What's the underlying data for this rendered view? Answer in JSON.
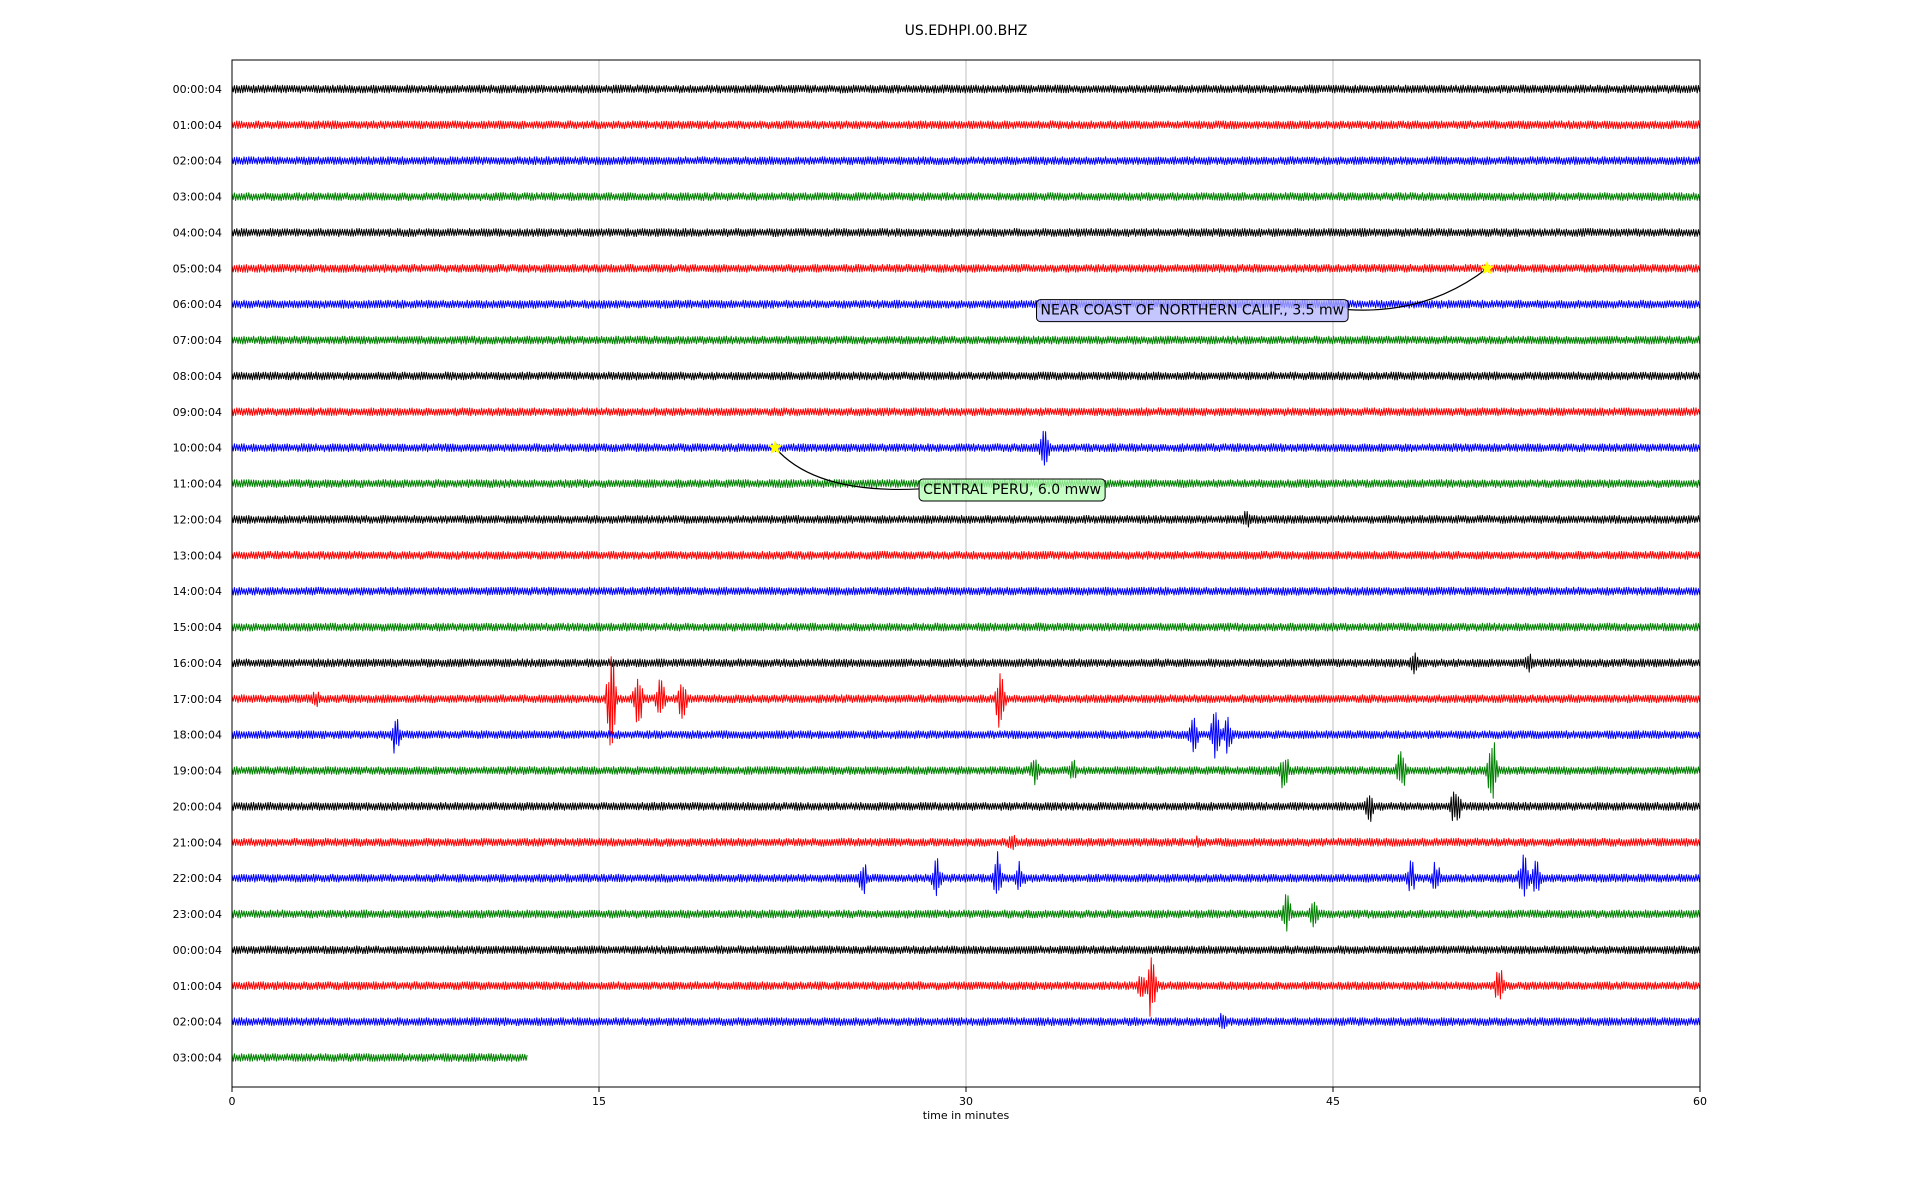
{
  "chart_data": {
    "type": "line",
    "title": "US.EDHPI.00.BHZ",
    "xlabel": "time in minutes",
    "ylabel": "",
    "xlim": [
      0,
      60
    ],
    "x_ticks": [
      0,
      15,
      30,
      45,
      60
    ],
    "x_tick_labels": [
      "0",
      "15",
      "30",
      "45",
      "60"
    ],
    "grid": "vertical",
    "line_colors": [
      "#000000",
      "#ff0000",
      "#0000ff",
      "#008000"
    ],
    "rows": [
      {
        "label": "00:00:04",
        "end": 60,
        "bursts": []
      },
      {
        "label": "01:00:04",
        "end": 60,
        "bursts": []
      },
      {
        "label": "02:00:04",
        "end": 60,
        "bursts": []
      },
      {
        "label": "03:00:04",
        "end": 60,
        "bursts": []
      },
      {
        "label": "04:00:04",
        "end": 60,
        "bursts": []
      },
      {
        "label": "05:00:04",
        "end": 60,
        "bursts": []
      },
      {
        "label": "06:00:04",
        "end": 60,
        "bursts": []
      },
      {
        "label": "07:00:04",
        "end": 60,
        "bursts": []
      },
      {
        "label": "08:00:04",
        "end": 60,
        "bursts": []
      },
      {
        "label": "09:00:04",
        "end": 60,
        "bursts": []
      },
      {
        "label": "10:00:04",
        "end": 60,
        "bursts": [
          [
            33.2,
            0.6
          ]
        ]
      },
      {
        "label": "11:00:04",
        "end": 60,
        "bursts": []
      },
      {
        "label": "12:00:04",
        "end": 60,
        "bursts": [
          [
            41.5,
            0.3
          ]
        ]
      },
      {
        "label": "13:00:04",
        "end": 60,
        "bursts": []
      },
      {
        "label": "14:00:04",
        "end": 60,
        "bursts": []
      },
      {
        "label": "15:00:04",
        "end": 60,
        "bursts": []
      },
      {
        "label": "16:00:04",
        "end": 60,
        "bursts": [
          [
            48.3,
            0.35
          ],
          [
            53.0,
            0.3
          ]
        ]
      },
      {
        "label": "17:00:04",
        "end": 60,
        "bursts": [
          [
            3.4,
            0.3
          ],
          [
            15.5,
            1.4
          ],
          [
            16.6,
            0.8
          ],
          [
            17.5,
            0.6
          ],
          [
            18.4,
            0.6
          ],
          [
            31.4,
            0.9
          ]
        ]
      },
      {
        "label": "18:00:04",
        "end": 60,
        "bursts": [
          [
            6.7,
            0.6
          ],
          [
            39.3,
            0.5
          ],
          [
            40.2,
            0.7
          ],
          [
            40.7,
            0.6
          ]
        ]
      },
      {
        "label": "19:00:04",
        "end": 60,
        "bursts": [
          [
            32.8,
            0.45
          ],
          [
            34.4,
            0.3
          ],
          [
            43.0,
            0.6
          ],
          [
            47.8,
            0.75
          ],
          [
            51.5,
            1.0
          ]
        ]
      },
      {
        "label": "20:00:04",
        "end": 60,
        "bursts": [
          [
            46.5,
            0.45
          ],
          [
            50.0,
            0.7
          ]
        ]
      },
      {
        "label": "21:00:04",
        "end": 60,
        "bursts": [
          [
            31.9,
            0.3
          ],
          [
            39.5,
            0.2
          ]
        ]
      },
      {
        "label": "22:00:04",
        "end": 60,
        "bursts": [
          [
            25.8,
            0.5
          ],
          [
            28.8,
            0.6
          ],
          [
            31.3,
            0.75
          ],
          [
            32.2,
            0.5
          ],
          [
            48.2,
            0.5
          ],
          [
            49.2,
            0.5
          ],
          [
            52.8,
            0.75
          ],
          [
            53.3,
            0.5
          ]
        ]
      },
      {
        "label": "23:00:04",
        "end": 60,
        "bursts": [
          [
            43.1,
            0.6
          ],
          [
            44.2,
            0.45
          ]
        ]
      },
      {
        "label": "00:00:04",
        "end": 60,
        "bursts": []
      },
      {
        "label": "01:00:04",
        "end": 60,
        "bursts": [
          [
            37.2,
            0.5
          ],
          [
            37.6,
            1.0
          ],
          [
            51.8,
            0.6
          ]
        ]
      },
      {
        "label": "02:00:04",
        "end": 60,
        "bursts": [
          [
            40.5,
            0.3
          ]
        ]
      },
      {
        "label": "03:00:04",
        "end": 12.1,
        "bursts": []
      }
    ],
    "events": [
      {
        "label": "NEAR COAST OF NORTHERN CALIF., 3.5 mw",
        "row": 5,
        "minute": 51.3,
        "marker_color": "#ffff00",
        "box_color": "#b3b3ff",
        "text_row": 6.15,
        "text_minute": 32.8
      },
      {
        "label": "CENTRAL PERU, 6.0 mww",
        "row": 10,
        "minute": 22.2,
        "marker_color": "#ffff00",
        "box_color": "#b3ffb3",
        "text_row": 11.15,
        "text_minute": 28.0
      }
    ]
  }
}
